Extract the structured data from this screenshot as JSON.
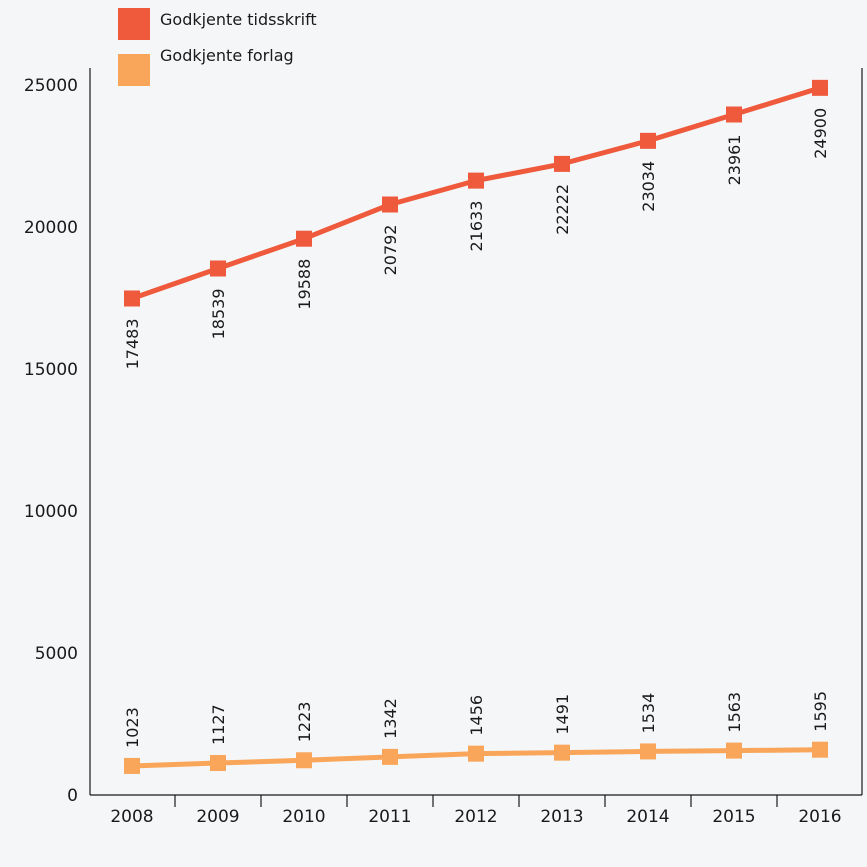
{
  "chart_data": {
    "type": "line",
    "title": "",
    "xlabel": "",
    "ylabel": "",
    "categories": [
      "2008",
      "2009",
      "2010",
      "2011",
      "2012",
      "2013",
      "2014",
      "2015",
      "2016"
    ],
    "ylim": [
      0,
      25000
    ],
    "yticks": [
      "0",
      "5000",
      "10000",
      "15000",
      "20000",
      "25000"
    ],
    "grid": false,
    "legend_position": "top-left",
    "series": [
      {
        "name": "Godkjente tidsskrift",
        "color": "#ef5a3c",
        "values": [
          17483,
          18539,
          19588,
          20792,
          21633,
          22222,
          23034,
          23961,
          24900
        ],
        "labels": [
          "17483",
          "18539",
          "19588",
          "20792",
          "21633",
          "22222",
          "23034",
          "23961",
          "24900"
        ]
      },
      {
        "name": "Godkjente forlag",
        "color": "#f9a65a",
        "values": [
          1023,
          1127,
          1223,
          1342,
          1456,
          1491,
          1534,
          1563,
          1595
        ],
        "labels": [
          "1023",
          "1127",
          "1223",
          "1342",
          "1456",
          "1491",
          "1534",
          "1563",
          "1595"
        ]
      }
    ]
  }
}
